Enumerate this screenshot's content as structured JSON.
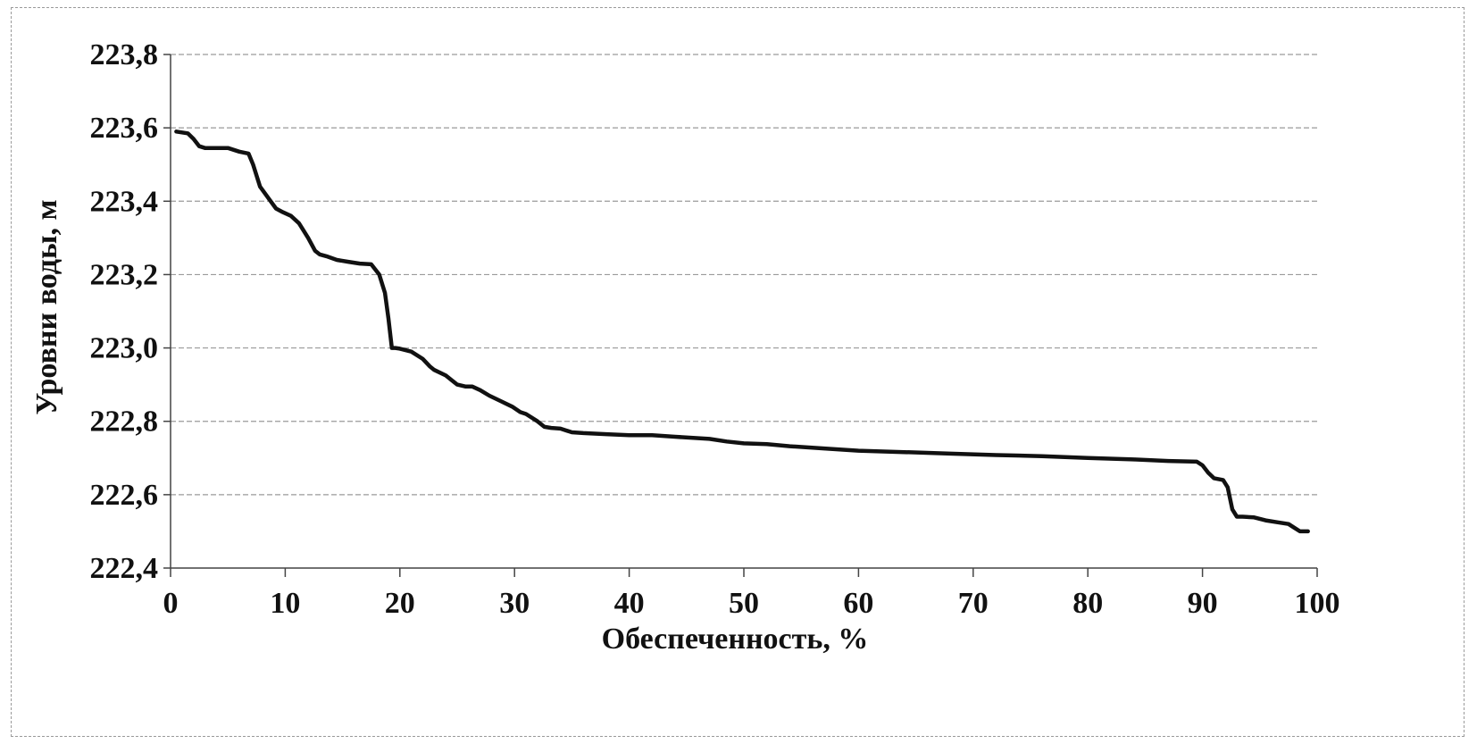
{
  "chart_data": {
    "type": "line",
    "title": "",
    "xlabel": "Обеспеченность, %",
    "ylabel": "Уровни воды, м",
    "xlim": [
      0,
      100
    ],
    "ylim": [
      222.4,
      223.8
    ],
    "x_ticks": [
      0,
      10,
      20,
      30,
      40,
      50,
      60,
      70,
      80,
      90,
      100
    ],
    "x_tick_labels": [
      "0",
      "10",
      "20",
      "30",
      "40",
      "50",
      "60",
      "70",
      "80",
      "90",
      "100"
    ],
    "y_ticks": [
      222.4,
      222.6,
      222.8,
      223.0,
      223.2,
      223.4,
      223.6,
      223.8
    ],
    "y_tick_labels": [
      "222,4",
      "222,6",
      "222,8",
      "223,0",
      "223,2",
      "223,4",
      "223,6",
      "223,8"
    ],
    "grid": "horizontal",
    "legend": "none",
    "colors": {
      "line": "#111111",
      "grid": "#9a9a9a",
      "axis": "#444444"
    },
    "series": [
      {
        "x": [
          0.5,
          1.5,
          2.0,
          2.5,
          3.0,
          4.0,
          5.0,
          6.0,
          6.8,
          7.2,
          7.8,
          8.5,
          9.2,
          9.8,
          10.5,
          11.2,
          12.0,
          12.6,
          13.0,
          13.6,
          14.5,
          15.5,
          16.5,
          17.5,
          18.2,
          18.7,
          19.0,
          19.3,
          19.6,
          20.0,
          21.0,
          22.0,
          22.6,
          23.0,
          24.0,
          25.0,
          25.7,
          26.3,
          27.0,
          27.8,
          28.8,
          29.8,
          30.5,
          31.0,
          32.0,
          32.6,
          33.2,
          34.0,
          35.0,
          36.0,
          38.0,
          40.0,
          42.0,
          44.0,
          47.0,
          48.5,
          50.0,
          52.0,
          54.0,
          57.0,
          60.0,
          64.0,
          68.0,
          72.0,
          76.0,
          80.0,
          84.0,
          87.0,
          89.5,
          90.0,
          90.5,
          91.0,
          91.8,
          92.2,
          92.6,
          93.0,
          93.5,
          94.5,
          95.5,
          96.5,
          97.5,
          98.0,
          98.5,
          99.2
        ],
        "y": [
          223.59,
          223.585,
          223.57,
          223.55,
          223.545,
          223.545,
          223.545,
          223.535,
          223.53,
          223.5,
          223.44,
          223.41,
          223.38,
          223.37,
          223.36,
          223.34,
          223.3,
          223.265,
          223.255,
          223.25,
          223.24,
          223.235,
          223.23,
          223.228,
          223.2,
          223.15,
          223.08,
          223.0,
          223.0,
          222.998,
          222.99,
          222.97,
          222.95,
          222.94,
          222.925,
          222.9,
          222.895,
          222.895,
          222.885,
          222.87,
          222.855,
          222.84,
          222.825,
          222.82,
          222.8,
          222.785,
          222.782,
          222.78,
          222.77,
          222.768,
          222.765,
          222.762,
          222.762,
          222.758,
          222.752,
          222.745,
          222.74,
          222.738,
          222.732,
          222.726,
          222.72,
          222.716,
          222.712,
          222.708,
          222.705,
          222.7,
          222.696,
          222.692,
          222.69,
          222.68,
          222.66,
          222.645,
          222.64,
          222.62,
          222.56,
          222.54,
          222.54,
          222.538,
          222.53,
          222.525,
          222.52,
          222.51,
          222.5,
          222.5
        ]
      }
    ]
  }
}
